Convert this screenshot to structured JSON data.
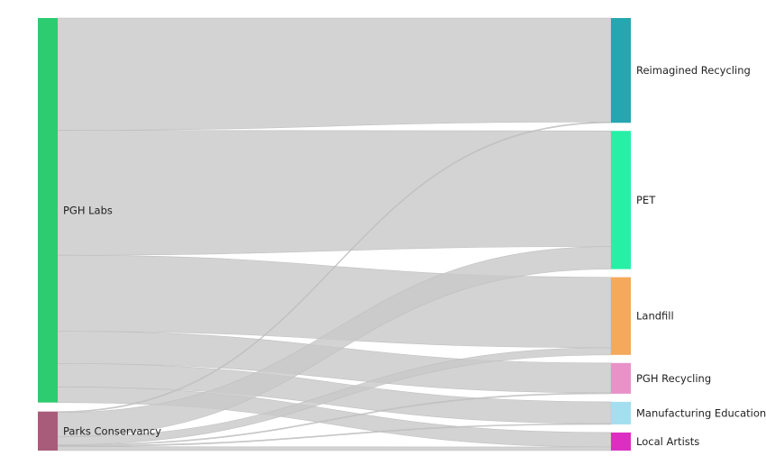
{
  "chart_data": {
    "type": "sankey",
    "title": "",
    "sources": [
      {
        "name": "PGH Labs",
        "color": "#2ecc71"
      },
      {
        "name": "Parks Conservancy",
        "color": "#a85c79"
      }
    ],
    "targets": [
      {
        "name": "Reimagined Recycling",
        "color": "#26a6b0"
      },
      {
        "name": "PET",
        "color": "#26f0a6"
      },
      {
        "name": "Landfill",
        "color": "#f5a95a"
      },
      {
        "name": "PGH Recycling",
        "color": "#e892c8"
      },
      {
        "name": "Manufacturing Education",
        "color": "#a4dff0"
      },
      {
        "name": "Local Artists",
        "color": "#dd2ec1"
      }
    ],
    "links": [
      {
        "source": "PGH Labs",
        "target": "Reimagined Recycling",
        "value": 115
      },
      {
        "source": "PGH Labs",
        "target": "PET",
        "value": 128
      },
      {
        "source": "PGH Labs",
        "target": "Landfill",
        "value": 78
      },
      {
        "source": "PGH Labs",
        "target": "PGH Recycling",
        "value": 33
      },
      {
        "source": "PGH Labs",
        "target": "Manufacturing Education",
        "value": 24
      },
      {
        "source": "PGH Labs",
        "target": "Local Artists",
        "value": 16
      },
      {
        "source": "Parks Conservancy",
        "target": "Reimagined Recycling",
        "value": 1
      },
      {
        "source": "Parks Conservancy",
        "target": "PET",
        "value": 25
      },
      {
        "source": "Parks Conservancy",
        "target": "Landfill",
        "value": 8
      },
      {
        "source": "Parks Conservancy",
        "target": "PGH Recycling",
        "value": 1
      },
      {
        "source": "Parks Conservancy",
        "target": "Manufacturing Education",
        "value": 1
      },
      {
        "source": "Parks Conservancy",
        "target": "Local Artists",
        "value": 4
      }
    ]
  }
}
